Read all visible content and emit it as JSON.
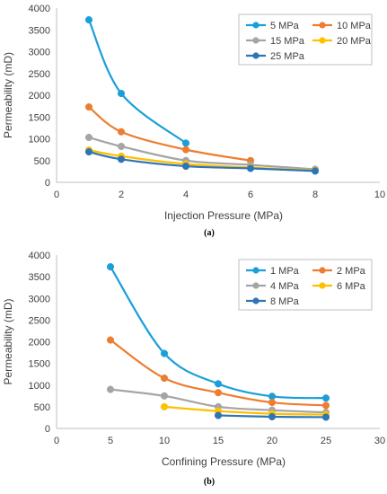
{
  "chart_data": [
    {
      "type": "line",
      "panel_label": "(a)",
      "title": "",
      "xlabel": "Injection Pressure (MPa)",
      "ylabel": "Permeability (mD)",
      "xlim": [
        0,
        10
      ],
      "ylim": [
        0,
        4000
      ],
      "xticks": [
        0,
        2,
        4,
        6,
        8,
        10
      ],
      "yticks": [
        0,
        500,
        1000,
        1500,
        2000,
        2500,
        3000,
        3500,
        4000
      ],
      "grid": false,
      "legend_position": "top-right",
      "series": [
        {
          "name": "5 MPa",
          "color": "#1a9fd9",
          "x": [
            1,
            2,
            4
          ],
          "y": [
            3730,
            2040,
            900
          ]
        },
        {
          "name": "10 MPa",
          "color": "#ed7d31",
          "x": [
            1,
            2,
            4,
            6
          ],
          "y": [
            1730,
            1160,
            750,
            500
          ]
        },
        {
          "name": "15 MPa",
          "color": "#a5a5a5",
          "x": [
            1,
            2,
            4,
            6,
            8
          ],
          "y": [
            1030,
            825,
            500,
            400,
            300
          ]
        },
        {
          "name": "20 MPa",
          "color": "#ffc000",
          "x": [
            1,
            2,
            4,
            6,
            8
          ],
          "y": [
            740,
            600,
            420,
            340,
            270
          ]
        },
        {
          "name": "25 MPa",
          "color": "#2e75b6",
          "x": [
            1,
            2,
            4,
            6,
            8
          ],
          "y": [
            700,
            530,
            370,
            320,
            260
          ]
        }
      ]
    },
    {
      "type": "line",
      "panel_label": "(b)",
      "title": "",
      "xlabel": "Confining Pressure (MPa)",
      "ylabel": "Permeability (mD)",
      "xlim": [
        0,
        30
      ],
      "ylim": [
        0,
        4000
      ],
      "xticks": [
        0,
        5,
        10,
        15,
        20,
        25,
        30
      ],
      "yticks": [
        0,
        500,
        1000,
        1500,
        2000,
        2500,
        3000,
        3500,
        4000
      ],
      "grid": false,
      "legend_position": "top-right",
      "series": [
        {
          "name": "1 MPa",
          "color": "#1a9fd9",
          "x": [
            5,
            10,
            15,
            20,
            25
          ],
          "y": [
            3730,
            1730,
            1030,
            740,
            700
          ]
        },
        {
          "name": "2 MPa",
          "color": "#ed7d31",
          "x": [
            5,
            10,
            15,
            20,
            25
          ],
          "y": [
            2040,
            1160,
            825,
            600,
            530
          ]
        },
        {
          "name": "4 MPa",
          "color": "#a5a5a5",
          "x": [
            5,
            10,
            15,
            20,
            25
          ],
          "y": [
            900,
            750,
            500,
            420,
            370
          ]
        },
        {
          "name": "6 MPa",
          "color": "#ffc000",
          "x": [
            10,
            15,
            20,
            25
          ],
          "y": [
            500,
            400,
            340,
            320
          ]
        },
        {
          "name": "8 MPa",
          "color": "#2e75b6",
          "x": [
            15,
            20,
            25
          ],
          "y": [
            300,
            270,
            260
          ]
        }
      ]
    }
  ]
}
